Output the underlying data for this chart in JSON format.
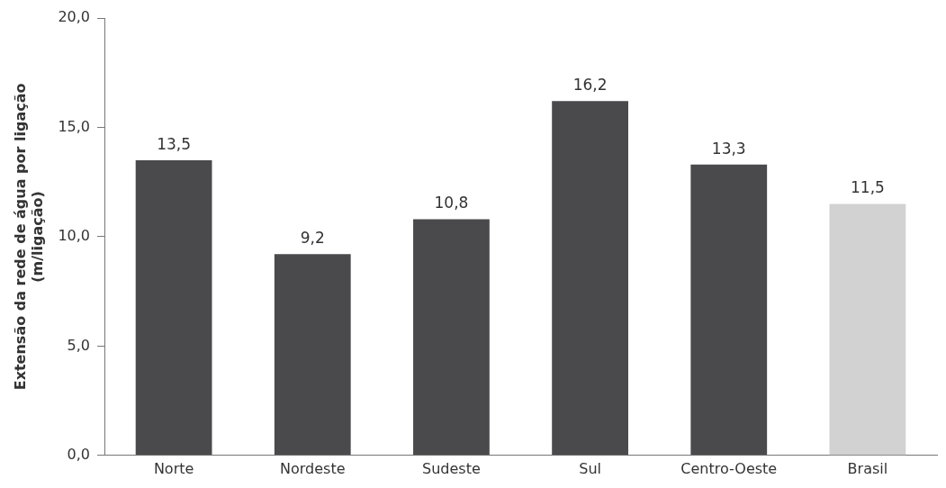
{
  "chart_data": {
    "type": "bar",
    "ylabel": "Extensão da rede de água por ligação\n(m/ligação)",
    "categories": [
      "Norte",
      "Nordeste",
      "Sudeste",
      "Sul",
      "Centro-Oeste",
      "Brasil"
    ],
    "values": [
      13.5,
      9.2,
      10.8,
      16.2,
      13.3,
      11.5
    ],
    "colors": [
      "#4a4a4c",
      "#4a4a4c",
      "#4a4a4c",
      "#4a4a4c",
      "#4a4a4c",
      "#d2d2d2"
    ],
    "value_labels": [
      "13,5",
      "9,2",
      "10,8",
      "16,2",
      "13,3",
      "11,5"
    ],
    "ylim": [
      0,
      20
    ],
    "yticks": [
      {
        "value": 0,
        "label": "0,0"
      },
      {
        "value": 5,
        "label": "5,0"
      },
      {
        "value": 10,
        "label": "10,0"
      },
      {
        "value": 15,
        "label": "15,0"
      },
      {
        "value": 20,
        "label": "20,0"
      }
    ],
    "grid": false,
    "legend": false
  }
}
